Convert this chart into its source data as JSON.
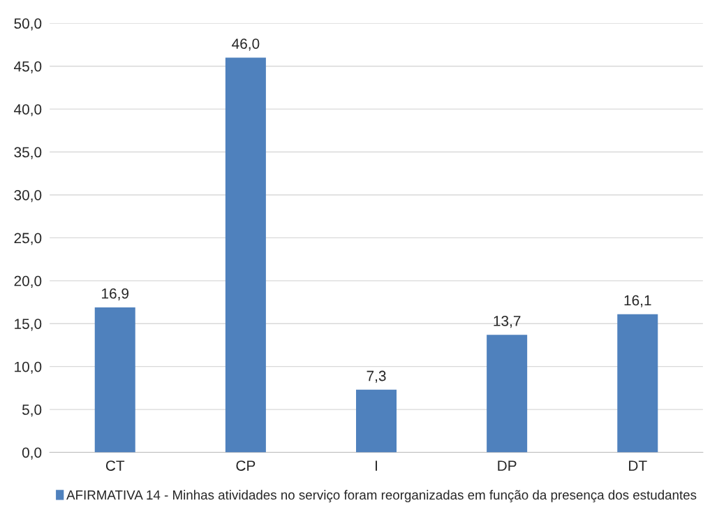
{
  "chart_data": {
    "type": "bar",
    "categories": [
      "CT",
      "CP",
      "I",
      "DP",
      "DT"
    ],
    "series": [
      {
        "name": "AFIRMATIVA 14 - Minhas atividades no serviço foram reorganizadas em função da presença dos estudantes",
        "color": "#4f81bd",
        "values": [
          16.9,
          46.0,
          7.3,
          13.7,
          16.1
        ],
        "value_labels": [
          "16,9",
          "46,0",
          "7,3",
          "13,7",
          "16,1"
        ]
      }
    ],
    "ylim": [
      0,
      50
    ],
    "yticks": [
      {
        "value": 0,
        "label": "0,0"
      },
      {
        "value": 5,
        "label": "5,0"
      },
      {
        "value": 10,
        "label": "10,0"
      },
      {
        "value": 15,
        "label": "15,0"
      },
      {
        "value": 20,
        "label": "20,0"
      },
      {
        "value": 25,
        "label": "25,0"
      },
      {
        "value": 30,
        "label": "30,0"
      },
      {
        "value": 35,
        "label": "35,0"
      },
      {
        "value": 40,
        "label": "40,0"
      },
      {
        "value": 45,
        "label": "45,0"
      },
      {
        "value": 50,
        "label": "50,0"
      }
    ],
    "grid": "y",
    "legend": "bottom"
  }
}
